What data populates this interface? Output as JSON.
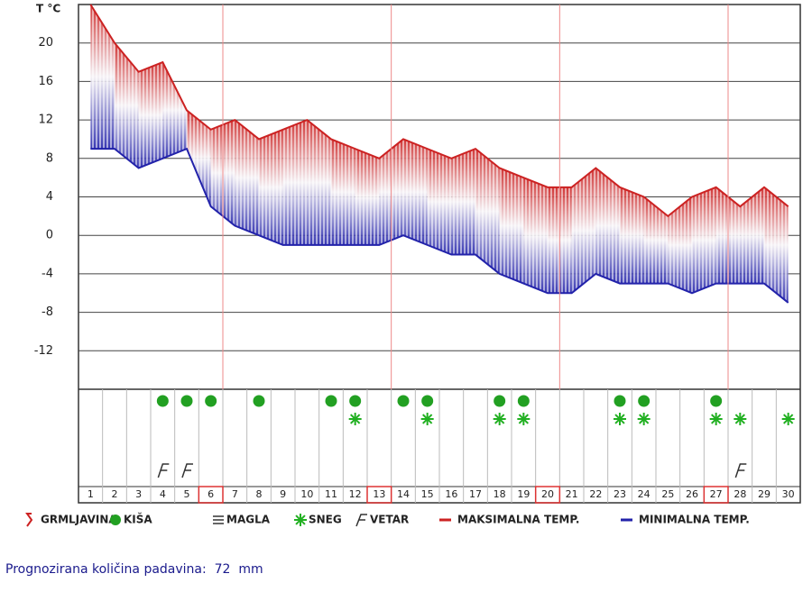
{
  "chart_data": {
    "type": "line",
    "y_axis_label": "T °C",
    "categories": [
      "1",
      "2",
      "3",
      "4",
      "5",
      "6",
      "7",
      "8",
      "9",
      "10",
      "11",
      "12",
      "13",
      "14",
      "15",
      "16",
      "17",
      "18",
      "19",
      "20",
      "21",
      "22",
      "23",
      "24",
      "25",
      "26",
      "27",
      "28",
      "29",
      "30"
    ],
    "series": [
      {
        "name": "MAKSIMALNA TEMP.",
        "color": "#cc2222",
        "values": [
          24,
          20,
          17,
          18,
          13,
          11,
          12,
          10,
          11,
          12,
          10,
          9,
          8,
          10,
          9,
          8,
          9,
          7,
          6,
          5,
          5,
          7,
          5,
          4,
          2,
          4,
          5,
          3,
          5,
          3
        ]
      },
      {
        "name": "MINIMALNA TEMP.",
        "color": "#2222aa",
        "values": [
          9,
          9,
          7,
          8,
          9,
          3,
          1,
          0,
          -1,
          -1,
          -1,
          -1,
          -1,
          0,
          -1,
          -2,
          -2,
          -4,
          -5,
          -6,
          -6,
          -4,
          -5,
          -5,
          -5,
          -6,
          -5,
          -5,
          -5,
          -7
        ]
      }
    ],
    "ylim": [
      -16,
      24
    ],
    "yticks": [
      -12,
      -8,
      -4,
      0,
      4,
      8,
      12,
      16,
      20
    ],
    "grid": true,
    "boxed_days": [
      6,
      13,
      20,
      27
    ],
    "rain_days": [
      4,
      5,
      6,
      8,
      11,
      12,
      14,
      15,
      18,
      19,
      23,
      24,
      27
    ],
    "snow_days": [
      12,
      15,
      18,
      19,
      23,
      24,
      27,
      28,
      30
    ],
    "wind_days": [
      4,
      5,
      28
    ],
    "legend_symbols": [
      "GRMLJAVINA",
      "KIŠA",
      "MAGLA",
      "SNEG",
      "VETAR"
    ]
  },
  "footer": "Prognozirana količina padavina:  72  mm"
}
